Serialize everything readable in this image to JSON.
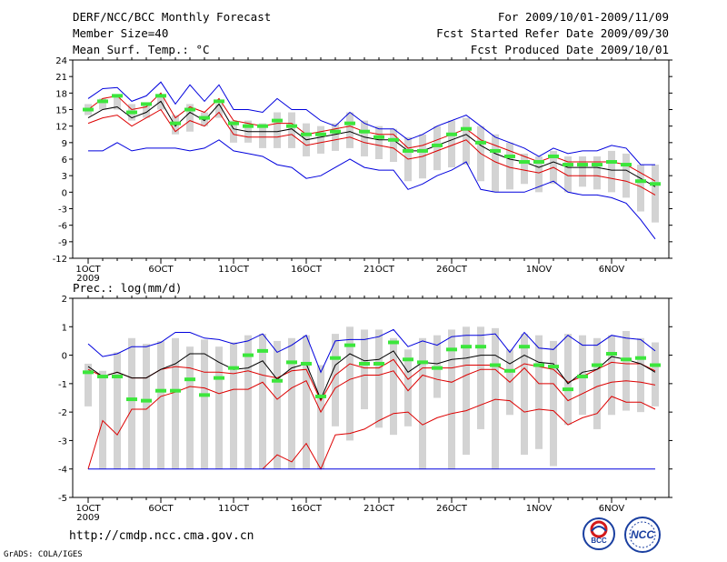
{
  "header": {
    "title": "DERF/NCC/BCC Monthly Forecast",
    "member_size": "Member Size=40",
    "variable": "Mean Surf. Temp.: °C",
    "for_period": "For 2009/10/01-2009/11/09",
    "fcst_started": "Fcst Started Refer Date 2009/09/30",
    "fcst_produced": "Fcst Produced Date 2009/10/01"
  },
  "footer": {
    "url": "http://cmdp.ncc.cma.gov.cn",
    "credit": "GrADS: COLA/IGES",
    "logo_bcc": "BCC",
    "logo_ncc": "NCC"
  },
  "colors": {
    "box": "#d3d3d3",
    "green": "#3ce63c",
    "blue": "#0000dd",
    "red": "#dd0000",
    "mean": "#000000"
  },
  "chart_data": [
    {
      "type": "line",
      "title": "Mean Surf. Temp.: °C",
      "ylabel": "°C",
      "ylim": [
        -12,
        24
      ],
      "yticks": [
        -12,
        -9,
        -6,
        -3,
        0,
        3,
        6,
        9,
        12,
        15,
        18,
        21,
        24
      ],
      "xtick_labels": [
        {
          "day": 1,
          "label": "1OCT",
          "sub": "2009"
        },
        {
          "day": 6,
          "label": "6OCT"
        },
        {
          "day": 11,
          "label": "11OCT"
        },
        {
          "day": 16,
          "label": "16OCT"
        },
        {
          "day": 21,
          "label": "21OCT"
        },
        {
          "day": 26,
          "label": "26OCT"
        },
        {
          "day": 32,
          "label": "1NOV"
        },
        {
          "day": 37,
          "label": "6NOV"
        }
      ],
      "x_days": [
        1,
        2,
        3,
        4,
        5,
        6,
        7,
        8,
        9,
        10,
        11,
        12,
        13,
        14,
        15,
        16,
        17,
        18,
        19,
        20,
        21,
        22,
        23,
        24,
        25,
        26,
        27,
        28,
        29,
        30,
        31,
        32,
        33,
        34,
        35,
        36,
        37,
        38,
        39,
        40
      ],
      "series": [
        {
          "name": "ensemble max",
          "color": "blue",
          "values": [
            17,
            18.8,
            19,
            16.5,
            17.5,
            20,
            16,
            19.5,
            16.5,
            19.5,
            15,
            15,
            14.5,
            17,
            15,
            15,
            13,
            12,
            14.5,
            12.5,
            11.5,
            11.5,
            9.5,
            10.5,
            12,
            13,
            14,
            12,
            10,
            9,
            8,
            6.5,
            8,
            7,
            7.5,
            7.5,
            8.5,
            8,
            5,
            5
          ]
        },
        {
          "name": "upper",
          "color": "red",
          "values": [
            15,
            17,
            17.5,
            15,
            15.5,
            18,
            13.5,
            15.5,
            14.5,
            17,
            13,
            12.5,
            12,
            12.5,
            12.5,
            10.5,
            11,
            11.5,
            12,
            11,
            10.5,
            10.5,
            8,
            8.5,
            9.5,
            10.5,
            11.5,
            9.5,
            8.5,
            7.5,
            6.5,
            5.5,
            6.5,
            5.5,
            5.5,
            5.5,
            5.5,
            5,
            3.5,
            2
          ]
        },
        {
          "name": "ensemble mean",
          "color": "mean",
          "values": [
            13.5,
            15,
            15.5,
            13.5,
            14.5,
            16.5,
            12,
            14.5,
            13,
            16,
            11.5,
            11,
            11,
            11,
            11.5,
            9.5,
            10,
            10.5,
            11,
            10,
            9.5,
            9.5,
            7.5,
            7.5,
            8.5,
            9.5,
            10.5,
            8.5,
            7,
            6,
            5.5,
            4.5,
            5.5,
            4.5,
            4.5,
            4.5,
            4,
            4,
            2.5,
            1
          ]
        },
        {
          "name": "lower",
          "color": "red",
          "values": [
            12.5,
            13.5,
            14,
            12,
            13.5,
            15,
            11,
            13,
            12,
            14.5,
            10.5,
            10,
            10,
            10,
            10.5,
            8.5,
            9,
            9.5,
            10,
            9,
            8.5,
            8,
            6,
            6.5,
            7.5,
            8.5,
            9.5,
            7,
            5.5,
            4.5,
            4,
            3.5,
            4.5,
            3,
            3,
            3,
            2.5,
            2,
            1,
            -0.5
          ]
        },
        {
          "name": "ensemble min",
          "color": "blue",
          "values": [
            7.5,
            7.5,
            9,
            7.5,
            8,
            8,
            8,
            7.5,
            8,
            9.5,
            7.5,
            7,
            6.5,
            5,
            4.5,
            2.5,
            3,
            4.5,
            6,
            4.5,
            4,
            4,
            0.5,
            1.5,
            3,
            4,
            5.5,
            0.5,
            0,
            0,
            0,
            1,
            2,
            0,
            -0.5,
            -0.5,
            -1,
            -2,
            -5,
            -8.5
          ]
        },
        {
          "name": "observation/green",
          "color": "green",
          "values": [
            15,
            16.5,
            17.5,
            14.5,
            16,
            17.5,
            12.5,
            15,
            13.5,
            16.5,
            12.5,
            12,
            12,
            13,
            12,
            10.5,
            10.5,
            11,
            12.5,
            11,
            10,
            9.5,
            7.5,
            7.5,
            8.5,
            10.5,
            11.5,
            9,
            7.5,
            6.5,
            5.5,
            5.5,
            6.5,
            5,
            5,
            5,
            5.5,
            5,
            2,
            1.5
          ]
        }
      ],
      "boxes": {
        "top": [
          16,
          17,
          17.5,
          16,
          16,
          17.5,
          14,
          16,
          14.5,
          16,
          13,
          13,
          12.5,
          14.5,
          14.5,
          12.5,
          12,
          12.5,
          14.5,
          13,
          12,
          11.5,
          10,
          10.5,
          12,
          13,
          13.5,
          12,
          10.5,
          9,
          7,
          6.5,
          7.5,
          6.5,
          6.5,
          6.5,
          7.5,
          7,
          5,
          5
        ],
        "bottom": [
          14,
          15,
          15,
          13,
          13.5,
          15,
          10.5,
          11,
          12,
          13.5,
          9,
          9,
          8,
          8,
          8,
          6.5,
          7,
          7.5,
          8,
          6.5,
          6,
          5.5,
          2,
          2.5,
          4,
          4.5,
          5,
          2,
          0,
          0.5,
          1.5,
          0,
          1.5,
          0,
          1,
          0.5,
          0,
          -1,
          -3.5,
          -5.5
        ]
      }
    },
    {
      "type": "line",
      "title": "Prec.: log(mm/d)",
      "ylabel": "log(mm/d)",
      "ylim": [
        -5,
        2
      ],
      "yticks": [
        -5,
        -4,
        -3,
        -2,
        -1,
        0,
        1,
        2
      ],
      "xtick_labels": [
        {
          "day": 1,
          "label": "1OCT",
          "sub": "2009"
        },
        {
          "day": 6,
          "label": "6OCT"
        },
        {
          "day": 11,
          "label": "11OCT"
        },
        {
          "day": 16,
          "label": "16OCT"
        },
        {
          "day": 21,
          "label": "21OCT"
        },
        {
          "day": 26,
          "label": "26OCT"
        },
        {
          "day": 32,
          "label": "1NOV"
        },
        {
          "day": 37,
          "label": "6NOV"
        }
      ],
      "x_days": [
        1,
        2,
        3,
        4,
        5,
        6,
        7,
        8,
        9,
        10,
        11,
        12,
        13,
        14,
        15,
        16,
        17,
        18,
        19,
        20,
        21,
        22,
        23,
        24,
        25,
        26,
        27,
        28,
        29,
        30,
        31,
        32,
        33,
        34,
        35,
        36,
        37,
        38,
        39,
        40
      ],
      "series": [
        {
          "name": "ensemble max",
          "color": "blue",
          "values": [
            0.4,
            -0.05,
            0.05,
            0.3,
            0.3,
            0.45,
            0.8,
            0.8,
            0.6,
            0.55,
            0.4,
            0.5,
            0.75,
            0.1,
            0.35,
            0.7,
            -0.6,
            0.5,
            0.55,
            0.55,
            0.65,
            0.9,
            0.3,
            0.5,
            0.35,
            0.65,
            0.7,
            0.7,
            0.75,
            0.1,
            0.8,
            0.25,
            0.2,
            0.7,
            0.35,
            0.35,
            0.7,
            0.6,
            0.55,
            0.15
          ]
        },
        {
          "name": "upper",
          "color": "red",
          "values": [
            -0.5,
            -0.75,
            -0.6,
            -0.8,
            -0.8,
            -0.5,
            -0.4,
            -0.45,
            -0.6,
            -0.6,
            -0.65,
            -0.55,
            -0.7,
            -0.8,
            -0.55,
            -0.5,
            -1.6,
            -0.7,
            -0.3,
            -0.45,
            -0.45,
            -0.15,
            -0.85,
            -0.45,
            -0.45,
            -0.45,
            -0.35,
            -0.35,
            -0.35,
            -0.6,
            -0.3,
            -0.4,
            -0.5,
            -0.95,
            -0.75,
            -0.5,
            -0.25,
            -0.3,
            -0.3,
            -0.55
          ]
        },
        {
          "name": "ensemble mean",
          "color": "mean",
          "values": [
            -0.4,
            -0.75,
            -0.6,
            -0.8,
            -0.8,
            -0.5,
            -0.3,
            0.05,
            0.05,
            -0.25,
            -0.5,
            -0.45,
            -0.2,
            -0.85,
            -0.45,
            -0.3,
            -1.55,
            -0.35,
            0.05,
            -0.2,
            -0.15,
            0.15,
            -0.6,
            -0.25,
            -0.3,
            -0.15,
            -0.1,
            0,
            0,
            -0.3,
            0,
            -0.25,
            -0.3,
            -1,
            -0.6,
            -0.5,
            -0.05,
            -0.15,
            -0.3,
            -0.6
          ]
        },
        {
          "name": "lower",
          "color": "red",
          "values": [
            -4,
            -2.3,
            -2.8,
            -1.9,
            -1.9,
            -1.45,
            -1.3,
            -1.1,
            -1.15,
            -1.35,
            -1.2,
            -1.2,
            -0.95,
            -1.55,
            -1.15,
            -0.9,
            -2,
            -1.15,
            -0.85,
            -0.7,
            -0.7,
            -0.55,
            -1.25,
            -0.7,
            -0.85,
            -0.95,
            -0.7,
            -0.5,
            -0.5,
            -0.95,
            -0.45,
            -1,
            -1,
            -1.6,
            -1.35,
            -1.1,
            -0.95,
            -0.9,
            -0.95,
            -1.05
          ]
        },
        {
          "name": "lower-2",
          "color": "red",
          "values": [
            null,
            null,
            null,
            null,
            null,
            null,
            null,
            null,
            null,
            null,
            null,
            null,
            -4,
            -3.5,
            -3.75,
            -3.1,
            -4,
            -2.8,
            -2.75,
            -2.6,
            -2.3,
            -2.05,
            -2,
            -2.45,
            -2.2,
            -2.05,
            -1.95,
            -1.75,
            -1.55,
            -1.6,
            -2,
            -1.9,
            -1.95,
            -2.45,
            -2.2,
            -2.05,
            -1.45,
            -1.65,
            -1.65,
            -1.9
          ]
        },
        {
          "name": "floor",
          "color": "red",
          "values": [
            -4,
            -4,
            -4,
            -4,
            -4,
            -4,
            -4,
            -4,
            -4,
            -4,
            -4,
            -4,
            -4,
            -4,
            -4,
            -4,
            -4,
            -4,
            -4,
            -4,
            -4,
            -4,
            -4,
            -4,
            -4,
            -4,
            -4,
            -4,
            -4,
            -4,
            -4,
            -4,
            -4,
            -4,
            -4,
            -4,
            -4,
            -4,
            -4,
            -4
          ]
        },
        {
          "name": "observation/green",
          "color": "green",
          "values": [
            -0.6,
            -0.75,
            -0.75,
            -1.55,
            -1.6,
            -1.25,
            -1.25,
            -0.85,
            -1.4,
            -0.8,
            -0.45,
            0,
            0.15,
            -0.9,
            -0.25,
            -0.3,
            -1.45,
            -0.1,
            0.35,
            -0.3,
            -0.3,
            0.45,
            -0.15,
            -0.25,
            -0.45,
            0.2,
            0.3,
            0.3,
            -0.35,
            -0.55,
            0.3,
            -0.35,
            -0.4,
            -1.2,
            -0.75,
            -0.35,
            0.05,
            -0.15,
            -0.1,
            -0.35
          ]
        }
      ],
      "boxes": {
        "top": [
          -0.3,
          -0.55,
          0.1,
          0.6,
          0.4,
          0.5,
          0.6,
          0.3,
          0.55,
          0.3,
          0.45,
          0.7,
          0.75,
          0.5,
          0.6,
          0.7,
          -0.35,
          0.75,
          1,
          0.9,
          0.9,
          0.6,
          0.2,
          0.6,
          0.7,
          0.9,
          1,
          1,
          0.95,
          0.2,
          0.75,
          0.7,
          0.5,
          0.75,
          0.7,
          0.6,
          0.7,
          0.85,
          0.6,
          0.45
        ],
        "bottom": [
          -1.8,
          -4,
          -4,
          -4,
          -4,
          -4,
          -4,
          -4,
          -4,
          -4,
          -4,
          -4,
          -4,
          -4,
          -4,
          -4,
          -4,
          -2.5,
          -3,
          -1.9,
          -2.55,
          -2.8,
          -2.5,
          -4,
          -1.5,
          -4,
          -3.5,
          -2.6,
          -4,
          -2.1,
          -3.5,
          -3.3,
          -3.9,
          -2.45,
          -2.1,
          -2.6,
          -2.1,
          -1.95,
          -2,
          -1.8
        ]
      }
    }
  ]
}
